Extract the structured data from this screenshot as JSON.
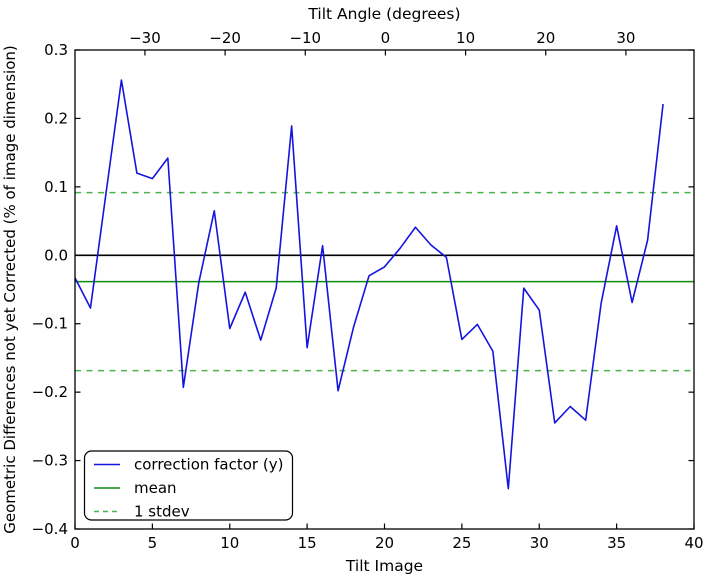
{
  "chart_data": {
    "type": "line",
    "xlabel": "Tilt Image",
    "ylabel": "Geometric Differences not yet Corrected (% of image dimension)",
    "xlim": [
      0,
      40
    ],
    "ylim": [
      -0.4,
      0.3
    ],
    "x_ticks": [
      0,
      5,
      10,
      15,
      20,
      25,
      30,
      35,
      40
    ],
    "y_ticks": [
      0.3,
      0.2,
      0.1,
      0.0,
      -0.1,
      -0.2,
      -0.3,
      -0.4
    ],
    "grid": false,
    "top_axis": {
      "label": "Tilt Angle (degrees)",
      "tick_labels": [
        "−30",
        "−20",
        "−10",
        "0",
        "10",
        "20",
        "30"
      ],
      "tick_data_x": [
        4.52,
        9.7,
        14.88,
        20.06,
        25.24,
        30.42,
        35.6
      ]
    },
    "series": [
      {
        "name": "correction factor (y)",
        "type": "line",
        "color": "#1414e1",
        "linestyle": "solid",
        "x": [
          0,
          1,
          2,
          3,
          4,
          5,
          6,
          7,
          8,
          9,
          10,
          11,
          12,
          13,
          14,
          15,
          16,
          17,
          18,
          19,
          20,
          21,
          22,
          23,
          24,
          25,
          26,
          27,
          28,
          29,
          30,
          31,
          32,
          33,
          34,
          35,
          36,
          37,
          38
        ],
        "y": [
          -0.033,
          -0.077,
          0.09,
          0.256,
          0.12,
          0.112,
          0.142,
          -0.193,
          -0.04,
          0.065,
          -0.107,
          -0.054,
          -0.124,
          -0.048,
          0.189,
          -0.135,
          0.014,
          -0.198,
          -0.105,
          -0.03,
          -0.017,
          0.01,
          0.041,
          0.015,
          -0.003,
          -0.123,
          -0.101,
          -0.14,
          -0.341,
          -0.048,
          -0.08,
          -0.245,
          -0.221,
          -0.241,
          -0.07,
          0.043,
          -0.069,
          0.022,
          0.221
        ]
      },
      {
        "name": "mean",
        "type": "hline",
        "color": "#0f8c0f",
        "linestyle": "solid",
        "y": [
          -0.0385
        ]
      },
      {
        "name": "1 stdev",
        "type": "hline",
        "color": "#4cb44c",
        "linestyle": "dashed",
        "y": [
          0.0915,
          -0.1685
        ]
      }
    ],
    "reference_lines": [
      {
        "name": "zero-line",
        "y": 0.0,
        "color": "#000000",
        "linestyle": "solid"
      }
    ],
    "legend": {
      "position": "lower left",
      "items": [
        {
          "label": "correction factor (y)",
          "color": "#1414e1",
          "linestyle": "solid"
        },
        {
          "label": "mean",
          "color": "#0f8c0f",
          "linestyle": "solid"
        },
        {
          "label": "1 stdev",
          "color": "#4cb44c",
          "linestyle": "dashed"
        }
      ]
    }
  }
}
